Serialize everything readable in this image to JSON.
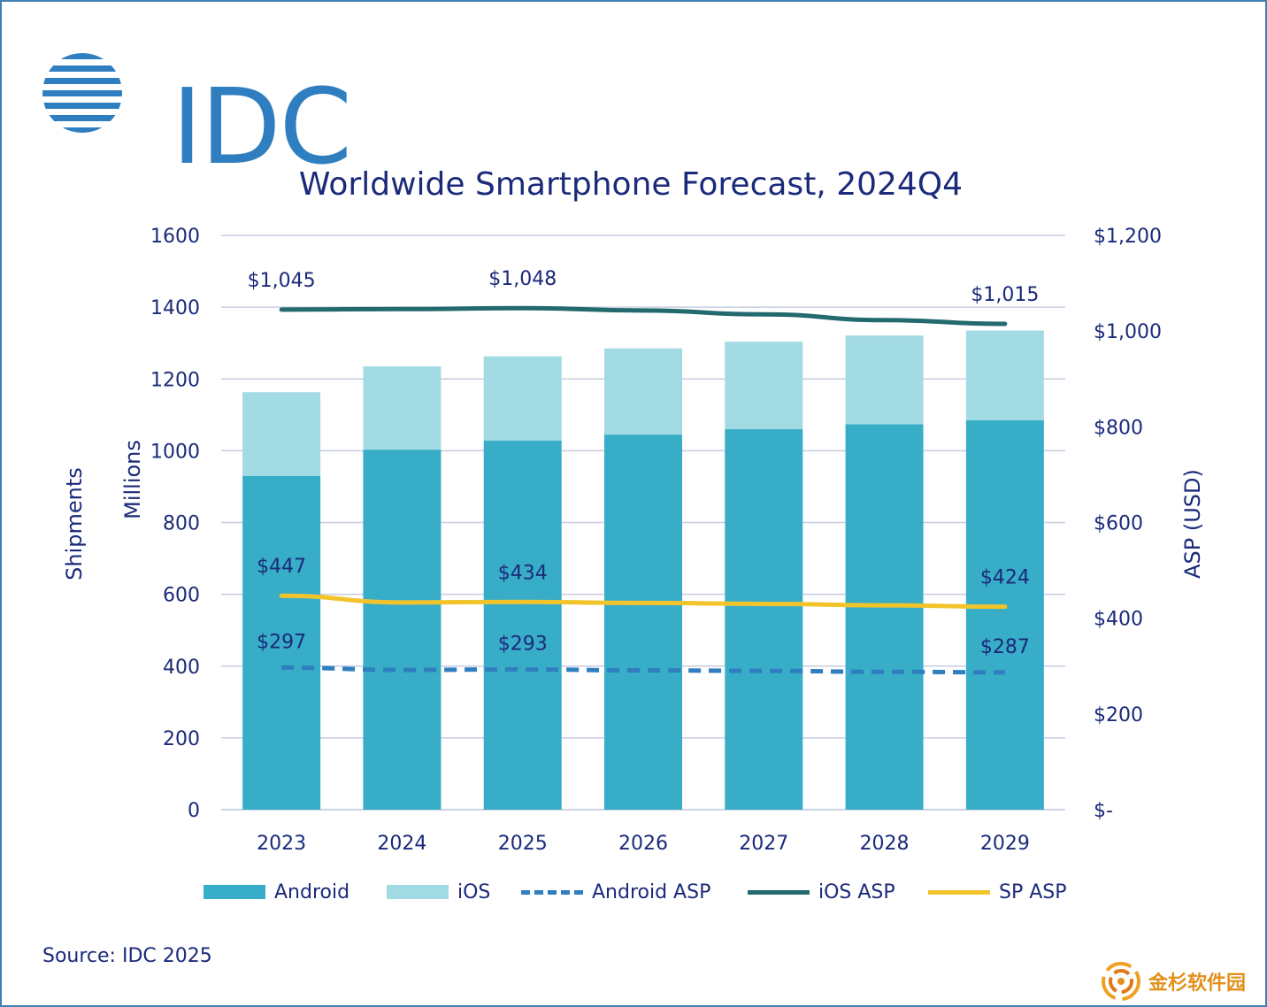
{
  "logo": {
    "text": "IDC"
  },
  "chart_data": {
    "type": "bar",
    "title": "Worldwide Smartphone Forecast, 2024Q4",
    "categories": [
      "2023",
      "2024",
      "2025",
      "2026",
      "2027",
      "2028",
      "2029"
    ],
    "stacked": true,
    "y_left": {
      "label_outer": "Shipments",
      "label_inner": "Millions",
      "range": [
        0,
        1600
      ],
      "ticks": [
        "0",
        "200",
        "400",
        "600",
        "800",
        "1000",
        "1200",
        "1400",
        "1600"
      ]
    },
    "y_right": {
      "label": "ASP (USD)",
      "range": [
        0,
        1200
      ],
      "ticks": [
        "$-",
        "$200",
        "$400",
        "$600",
        "$800",
        "$1,000",
        "$1,200"
      ]
    },
    "series": [
      {
        "name": "Android",
        "kind": "bar",
        "axis": "left",
        "color": "#38adc7",
        "values": [
          930,
          1003,
          1028,
          1045,
          1060,
          1074,
          1085
        ]
      },
      {
        "name": "iOS",
        "kind": "bar",
        "axis": "left",
        "color": "#a2dbe4",
        "values": [
          233,
          232,
          235,
          240,
          244,
          247,
          250
        ]
      },
      {
        "name": "Android ASP",
        "kind": "line",
        "dashed": true,
        "axis": "right",
        "color": "#2f7fc0",
        "values": [
          297,
          292,
          293,
          291,
          290,
          288,
          287
        ],
        "labels": [
          "$297",
          "",
          "$293",
          "",
          "",
          "",
          "$287"
        ]
      },
      {
        "name": "iOS ASP",
        "kind": "line",
        "axis": "right",
        "color": "#236a6e",
        "values": [
          1045,
          1046,
          1048,
          1043,
          1035,
          1023,
          1015
        ],
        "labels": [
          "$1,045",
          "",
          "$1,048",
          "",
          "",
          "",
          "$1,015"
        ]
      },
      {
        "name": "SP ASP",
        "kind": "line",
        "axis": "right",
        "color": "#f2c42c",
        "values": [
          447,
          433,
          434,
          432,
          430,
          427,
          424
        ],
        "labels": [
          "$447",
          "",
          "$434",
          "",
          "",
          "",
          "$424"
        ]
      }
    ],
    "grid": true,
    "legend_position": "bottom"
  },
  "source": "Source: IDC 2025",
  "watermark": "金杉软件园"
}
